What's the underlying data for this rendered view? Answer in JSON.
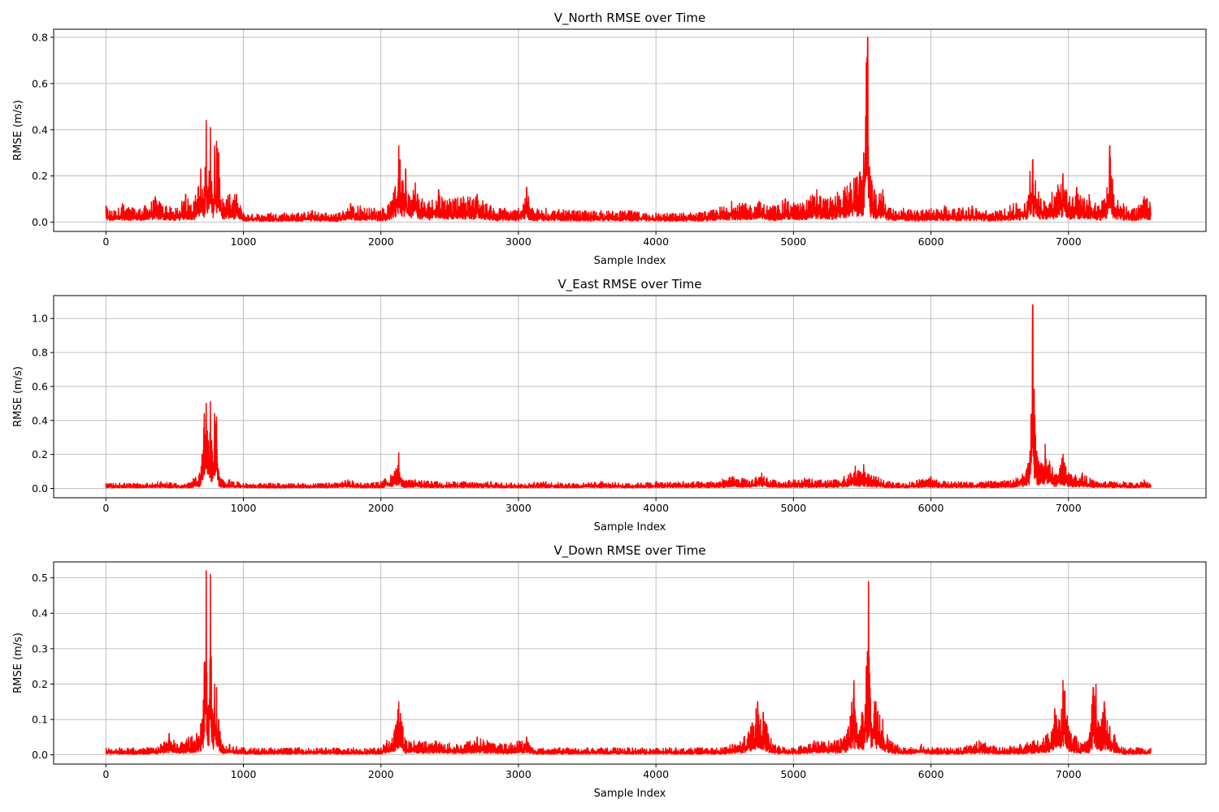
{
  "line_color": "#ff0000",
  "grid_color": "#b0b0b0",
  "chart_data": [
    {
      "type": "line",
      "title": "V_North RMSE over Time",
      "xlabel": "Sample Index",
      "ylabel": "RMSE (m/s)",
      "xlim": [
        -380,
        8000
      ],
      "ylim": [
        -0.04,
        0.835
      ],
      "xticks": [
        0,
        1000,
        2000,
        3000,
        4000,
        5000,
        6000,
        7000
      ],
      "xtick_labels": [
        "0",
        "1000",
        "2000",
        "3000",
        "4000",
        "5000",
        "6000",
        "7000"
      ],
      "yticks": [
        0.0,
        0.2,
        0.4,
        0.6,
        0.8
      ],
      "ytick_labels": [
        "0.0",
        "0.2",
        "0.4",
        "0.6",
        "0.8"
      ],
      "grid": true,
      "series": [
        {
          "x": [
            0,
            60,
            120,
            200,
            280,
            360,
            440,
            520,
            580,
            640,
            690,
            710,
            730,
            745,
            760,
            775,
            790,
            805,
            820,
            850,
            900,
            950,
            1000,
            1100,
            1200,
            1300,
            1400,
            1500,
            1600,
            1700,
            1780,
            1850,
            1950,
            2050,
            2100,
            2130,
            2160,
            2180,
            2200,
            2250,
            2300,
            2350,
            2420,
            2500,
            2600,
            2700,
            2800,
            2900,
            3000,
            3060,
            3100,
            3200,
            3400,
            3600,
            3800,
            4000,
            4200,
            4400,
            4550,
            4650,
            4750,
            4850,
            4940,
            5050,
            5170,
            5250,
            5320,
            5440,
            5480,
            5510,
            5530,
            5540,
            5560,
            5600,
            5650,
            5700,
            5800,
            5900,
            6000,
            6100,
            6200,
            6300,
            6400,
            6500,
            6600,
            6700,
            6720,
            6740,
            6760,
            6800,
            6880,
            6960,
            7010,
            7060,
            7100,
            7150,
            7220,
            7280,
            7300,
            7330,
            7400,
            7480,
            7550,
            7600
          ],
          "y": [
            0.07,
            0.05,
            0.08,
            0.06,
            0.07,
            0.11,
            0.07,
            0.06,
            0.12,
            0.09,
            0.23,
            0.1,
            0.44,
            0.15,
            0.41,
            0.12,
            0.33,
            0.35,
            0.3,
            0.1,
            0.12,
            0.12,
            0.04,
            0.035,
            0.04,
            0.04,
            0.04,
            0.05,
            0.04,
            0.04,
            0.08,
            0.07,
            0.06,
            0.07,
            0.14,
            0.33,
            0.18,
            0.23,
            0.12,
            0.17,
            0.1,
            0.09,
            0.14,
            0.1,
            0.11,
            0.12,
            0.07,
            0.06,
            0.06,
            0.15,
            0.06,
            0.06,
            0.05,
            0.05,
            0.05,
            0.04,
            0.04,
            0.05,
            0.09,
            0.08,
            0.09,
            0.07,
            0.1,
            0.08,
            0.14,
            0.1,
            0.13,
            0.19,
            0.21,
            0.3,
            0.69,
            0.8,
            0.2,
            0.12,
            0.14,
            0.06,
            0.06,
            0.05,
            0.06,
            0.07,
            0.06,
            0.07,
            0.05,
            0.05,
            0.08,
            0.09,
            0.22,
            0.27,
            0.18,
            0.1,
            0.13,
            0.21,
            0.11,
            0.15,
            0.1,
            0.12,
            0.07,
            0.15,
            0.33,
            0.12,
            0.08,
            0.06,
            0.11,
            0.09
          ]
        }
      ]
    },
    {
      "type": "line",
      "title": "V_East RMSE over Time",
      "xlabel": "Sample Index",
      "ylabel": "RMSE (m/s)",
      "xlim": [
        -380,
        8000
      ],
      "ylim": [
        -0.055,
        1.135
      ],
      "xticks": [
        0,
        1000,
        2000,
        3000,
        4000,
        5000,
        6000,
        7000
      ],
      "xtick_labels": [
        "0",
        "1000",
        "2000",
        "3000",
        "4000",
        "5000",
        "6000",
        "7000"
      ],
      "yticks": [
        0.0,
        0.2,
        0.4,
        0.6,
        0.8,
        1.0
      ],
      "ytick_labels": [
        "0.0",
        "0.2",
        "0.4",
        "0.6",
        "0.8",
        "1.0"
      ],
      "grid": true,
      "series": [
        {
          "x": [
            0,
            100,
            200,
            300,
            400,
            500,
            600,
            680,
            700,
            715,
            730,
            745,
            760,
            775,
            790,
            805,
            820,
            850,
            900,
            1000,
            1200,
            1400,
            1600,
            1760,
            1900,
            2000,
            2100,
            2130,
            2160,
            2250,
            2400,
            2600,
            2800,
            3000,
            3200,
            3400,
            3600,
            3800,
            4000,
            4200,
            4400,
            4560,
            4700,
            4770,
            4850,
            5000,
            5080,
            5200,
            5300,
            5400,
            5450,
            5480,
            5510,
            5550,
            5600,
            5700,
            5800,
            6000,
            6100,
            6200,
            6400,
            6600,
            6700,
            6720,
            6740,
            6755,
            6770,
            6800,
            6830,
            6900,
            6960,
            7020,
            7100,
            7200,
            7300,
            7400,
            7500,
            7550,
            7600
          ],
          "y": [
            0.03,
            0.03,
            0.03,
            0.03,
            0.04,
            0.03,
            0.03,
            0.09,
            0.2,
            0.44,
            0.5,
            0.28,
            0.51,
            0.2,
            0.44,
            0.42,
            0.1,
            0.05,
            0.05,
            0.03,
            0.03,
            0.03,
            0.03,
            0.05,
            0.03,
            0.04,
            0.1,
            0.21,
            0.05,
            0.05,
            0.04,
            0.04,
            0.04,
            0.03,
            0.04,
            0.03,
            0.04,
            0.03,
            0.04,
            0.04,
            0.04,
            0.07,
            0.05,
            0.09,
            0.05,
            0.05,
            0.06,
            0.05,
            0.05,
            0.08,
            0.13,
            0.1,
            0.14,
            0.08,
            0.07,
            0.04,
            0.03,
            0.07,
            0.04,
            0.04,
            0.04,
            0.05,
            0.12,
            0.22,
            1.08,
            0.43,
            0.22,
            0.15,
            0.26,
            0.08,
            0.2,
            0.08,
            0.09,
            0.04,
            0.04,
            0.04,
            0.03,
            0.05,
            0.03
          ]
        }
      ]
    },
    {
      "type": "line",
      "title": "V_Down RMSE over Time",
      "xlabel": "Sample Index",
      "ylabel": "RMSE (m/s)",
      "xlim": [
        -380,
        8000
      ],
      "ylim": [
        -0.026,
        0.545
      ],
      "xticks": [
        0,
        1000,
        2000,
        3000,
        4000,
        5000,
        6000,
        7000
      ],
      "xtick_labels": [
        "0",
        "1000",
        "2000",
        "3000",
        "4000",
        "5000",
        "6000",
        "7000"
      ],
      "yticks": [
        0.0,
        0.1,
        0.2,
        0.3,
        0.4,
        0.5
      ],
      "ytick_labels": [
        "0.0",
        "0.1",
        "0.2",
        "0.3",
        "0.4",
        "0.5"
      ],
      "grid": true,
      "series": [
        {
          "x": [
            0,
            100,
            200,
            300,
            400,
            460,
            520,
            600,
            660,
            700,
            715,
            730,
            745,
            760,
            775,
            790,
            805,
            820,
            850,
            900,
            1000,
            1200,
            1400,
            1600,
            1800,
            2000,
            2100,
            2130,
            2160,
            2180,
            2240,
            2400,
            2550,
            2700,
            2900,
            3060,
            3100,
            3300,
            3500,
            3700,
            3900,
            4100,
            4300,
            4500,
            4640,
            4700,
            4740,
            4760,
            4780,
            4850,
            5000,
            5150,
            5300,
            5400,
            5440,
            5460,
            5500,
            5530,
            5545,
            5560,
            5600,
            5650,
            5700,
            5800,
            5930,
            6050,
            6200,
            6350,
            6500,
            6650,
            6750,
            6850,
            6900,
            6930,
            6960,
            6975,
            7000,
            7100,
            7150,
            7180,
            7200,
            7230,
            7260,
            7300,
            7400,
            7500,
            7600
          ],
          "y": [
            0.02,
            0.02,
            0.02,
            0.02,
            0.03,
            0.06,
            0.03,
            0.05,
            0.06,
            0.1,
            0.26,
            0.52,
            0.14,
            0.51,
            0.13,
            0.2,
            0.19,
            0.1,
            0.03,
            0.03,
            0.02,
            0.02,
            0.02,
            0.02,
            0.02,
            0.02,
            0.07,
            0.15,
            0.08,
            0.04,
            0.04,
            0.04,
            0.03,
            0.05,
            0.03,
            0.05,
            0.02,
            0.02,
            0.02,
            0.02,
            0.02,
            0.02,
            0.02,
            0.02,
            0.05,
            0.09,
            0.15,
            0.1,
            0.12,
            0.03,
            0.02,
            0.04,
            0.04,
            0.08,
            0.21,
            0.09,
            0.12,
            0.25,
            0.49,
            0.16,
            0.15,
            0.1,
            0.04,
            0.02,
            0.03,
            0.02,
            0.02,
            0.04,
            0.02,
            0.03,
            0.04,
            0.06,
            0.13,
            0.1,
            0.21,
            0.18,
            0.08,
            0.03,
            0.05,
            0.19,
            0.2,
            0.08,
            0.15,
            0.08,
            0.02,
            0.02,
            0.02
          ]
        }
      ]
    }
  ]
}
